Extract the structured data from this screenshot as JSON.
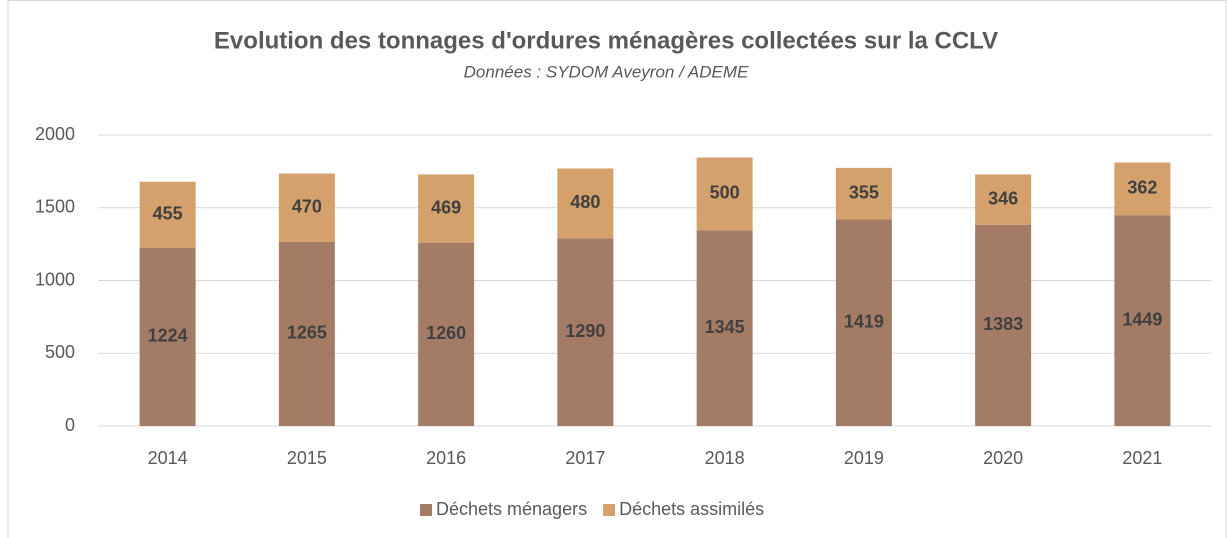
{
  "chart_data": {
    "type": "stacked_bar",
    "title": "Evolution des tonnages d'ordures ménagères collectées sur la CCLV",
    "subtitle": "Données : SYDOM Aveyron  / ADEME",
    "categories": [
      "2014",
      "2015",
      "2016",
      "2017",
      "2018",
      "2019",
      "2020",
      "2021"
    ],
    "series": [
      {
        "name": "Déchets ménagers",
        "color": "#a47c66",
        "values": [
          1224,
          1265,
          1260,
          1290,
          1345,
          1419,
          1383,
          1449
        ]
      },
      {
        "name": "Déchets assimilés",
        "color": "#d4a06b",
        "values": [
          455,
          470,
          469,
          480,
          500,
          355,
          346,
          362
        ]
      }
    ],
    "ylim": [
      0,
      2000
    ],
    "yticks": [
      0,
      500,
      1000,
      1500,
      2000
    ],
    "grid": true,
    "legend": "bottom"
  }
}
